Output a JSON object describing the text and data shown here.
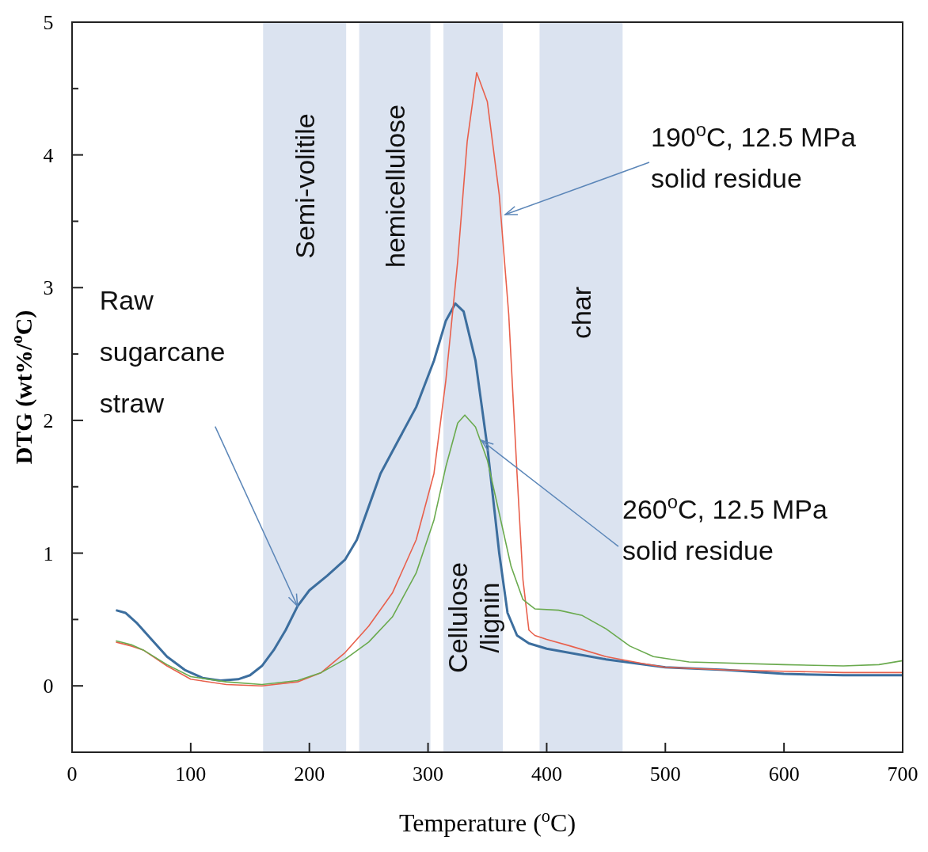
{
  "chart_data": {
    "type": "line",
    "xlabel": "Temperature ($^{o}$C)",
    "ylabel": "DTG (wt%/$^{o}$C)",
    "xlim": [
      0,
      700
    ],
    "xticks": [
      0,
      100,
      200,
      300,
      400,
      500,
      600,
      700
    ],
    "ylim": [
      -0.5,
      5
    ],
    "yticks": [
      0,
      {
        "value": 0.5,
        "label": null
      },
      1,
      {
        "value": 1.5,
        "label": null
      },
      2,
      {
        "value": 2.5,
        "label": null
      },
      3,
      {
        "value": 3.5,
        "label": null
      },
      4,
      {
        "value": 4.5,
        "label": null
      },
      5
    ],
    "grid": false,
    "marker": "none",
    "line_style": "solid",
    "bands": [
      {
        "axis": "x",
        "from": 161,
        "to": 231,
        "label": "Semi-volitile",
        "color": "#dbe3f0"
      },
      {
        "axis": "x",
        "from": 242,
        "to": 302,
        "label": "hemicellulose",
        "color": "#dbe3f0"
      },
      {
        "axis": "x",
        "from": 313,
        "to": 363,
        "label": "Cellulose /lignin",
        "color": "#dbe3f0"
      },
      {
        "axis": "x",
        "from": 394,
        "to": 464,
        "label": "char",
        "color": "#dbe3f0"
      }
    ],
    "annotations": [
      {
        "text": "Raw sugarcane straw",
        "x": 190,
        "y": 0.6
      },
      {
        "text": "190$^{o}$C, 12.5 MPa solid residue",
        "x": 365,
        "y": 3.55
      },
      {
        "text": "260$^{o}$C, 12.5 MPa solid residue",
        "x": 345,
        "y": 1.85
      }
    ],
    "series": [
      {
        "color": "#3c6e9e",
        "x": [
          37,
          45,
          55,
          65,
          80,
          95,
          110,
          125,
          140,
          150,
          160,
          170,
          180,
          190,
          200,
          215,
          230,
          240,
          250,
          260,
          275,
          290,
          305,
          315,
          323,
          330,
          340,
          350,
          360,
          367,
          375,
          385,
          400,
          450,
          500,
          550,
          600,
          650,
          700
        ],
        "values": [
          0.57,
          0.55,
          0.47,
          0.37,
          0.22,
          0.12,
          0.06,
          0.04,
          0.05,
          0.08,
          0.15,
          0.27,
          0.42,
          0.6,
          0.72,
          0.83,
          0.95,
          1.1,
          1.35,
          1.6,
          1.85,
          2.1,
          2.45,
          2.75,
          2.88,
          2.82,
          2.45,
          1.8,
          1.0,
          0.55,
          0.38,
          0.32,
          0.28,
          0.2,
          0.14,
          0.12,
          0.09,
          0.08,
          0.08
        ]
      },
      {
        "color": "#e8604c",
        "x": [
          37,
          50,
          60,
          80,
          100,
          130,
          160,
          190,
          210,
          230,
          250,
          270,
          290,
          305,
          315,
          325,
          333,
          341,
          350,
          360,
          368,
          375,
          380,
          385,
          390,
          400,
          420,
          450,
          480,
          500,
          550,
          600,
          650,
          700
        ],
        "values": [
          0.33,
          0.3,
          0.27,
          0.15,
          0.05,
          0.01,
          0.0,
          0.03,
          0.1,
          0.25,
          0.45,
          0.7,
          1.1,
          1.6,
          2.3,
          3.2,
          4.1,
          4.62,
          4.4,
          3.7,
          2.8,
          1.6,
          0.8,
          0.42,
          0.38,
          0.35,
          0.3,
          0.22,
          0.17,
          0.14,
          0.12,
          0.11,
          0.1,
          0.1
        ]
      },
      {
        "color": "#6aaa4e",
        "x": [
          37,
          50,
          60,
          80,
          100,
          130,
          160,
          190,
          210,
          230,
          250,
          270,
          290,
          305,
          315,
          325,
          331,
          340,
          350,
          360,
          370,
          380,
          390,
          410,
          430,
          450,
          470,
          490,
          520,
          600,
          650,
          680,
          700
        ],
        "values": [
          0.34,
          0.31,
          0.27,
          0.16,
          0.07,
          0.03,
          0.01,
          0.04,
          0.1,
          0.2,
          0.33,
          0.52,
          0.85,
          1.25,
          1.65,
          1.98,
          2.04,
          1.95,
          1.7,
          1.3,
          0.9,
          0.65,
          0.58,
          0.57,
          0.53,
          0.43,
          0.3,
          0.22,
          0.18,
          0.16,
          0.15,
          0.16,
          0.19
        ]
      }
    ]
  }
}
